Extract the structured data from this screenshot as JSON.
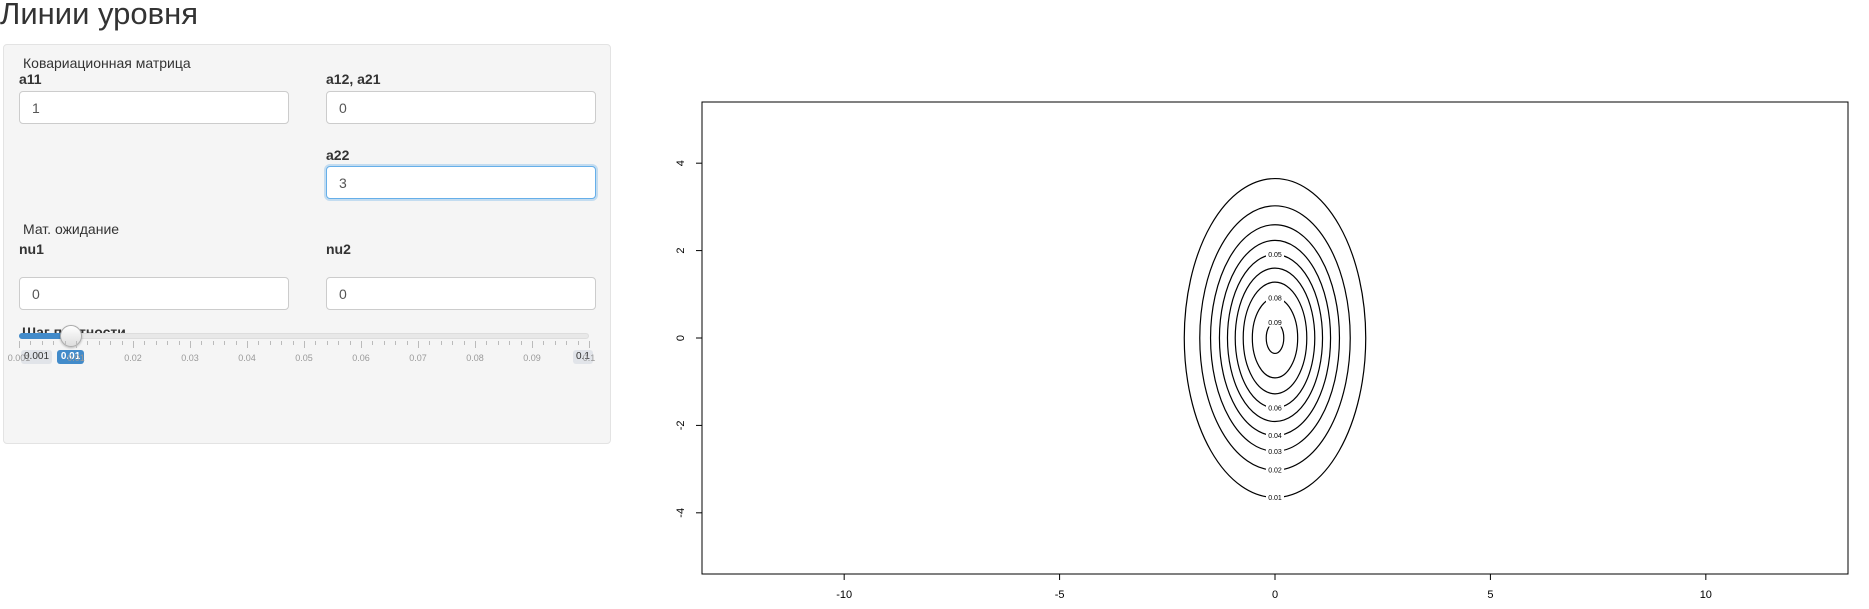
{
  "page": {
    "title": "Линии уровня"
  },
  "form": {
    "covariance_label": "Ковариационная матрица",
    "a11": {
      "label": "a11",
      "value": "1"
    },
    "a12": {
      "label": "a12, a21",
      "value": "0"
    },
    "a22": {
      "label": "a22",
      "value": "3"
    },
    "mean_label": "Мат. ожидание",
    "nu1": {
      "label": "nu1",
      "value": "0"
    },
    "nu2": {
      "label": "nu2",
      "value": "0"
    }
  },
  "slider": {
    "label": "Шаг плотности",
    "min": 0.001,
    "max": 0.1,
    "value": 0.01,
    "min_label": "0.001",
    "max_label": "0.1",
    "value_label": "0.01",
    "ticks": [
      "0.001",
      "0.01",
      "0.02",
      "0.03",
      "0.04",
      "0.05",
      "0.06",
      "0.07",
      "0.08",
      "0.09",
      "0.1"
    ],
    "accent": "#428bca"
  },
  "chart_data": {
    "type": "contour",
    "title": "",
    "xlabel": "",
    "ylabel": "",
    "xlim": [
      -13.3,
      13.3
    ],
    "ylim": [
      -5.4,
      5.4
    ],
    "x_ticks": [
      "-10",
      "-5",
      "0",
      "5",
      "10"
    ],
    "x_tick_values": [
      -10,
      -5,
      0,
      5,
      10
    ],
    "y_ticks": [
      "-4",
      "-2",
      "0",
      "2",
      "4"
    ],
    "y_tick_values": [
      -4,
      -2,
      0,
      2,
      4
    ],
    "distribution": {
      "mean": [
        0,
        0
      ],
      "covariance": [
        [
          1,
          0
        ],
        [
          0,
          3
        ]
      ]
    },
    "levels": [
      0.01,
      0.02,
      0.03,
      0.04,
      0.05,
      0.06,
      0.07,
      0.08,
      0.09
    ],
    "level_labels": [
      {
        "level": 0.01,
        "text": "0.01",
        "side": "bottom"
      },
      {
        "level": 0.02,
        "text": "0.02",
        "side": "bottom"
      },
      {
        "level": 0.03,
        "text": "0.03",
        "side": "bottom"
      },
      {
        "level": 0.04,
        "text": "0.04",
        "side": "bottom"
      },
      {
        "level": 0.05,
        "text": "0.05",
        "side": "top"
      },
      {
        "level": 0.06,
        "text": "0.06",
        "side": "bottom"
      },
      {
        "level": 0.08,
        "text": "0.08",
        "side": "top"
      },
      {
        "level": 0.09,
        "text": "0.09",
        "side": "top"
      }
    ],
    "line_color": "#000000"
  }
}
